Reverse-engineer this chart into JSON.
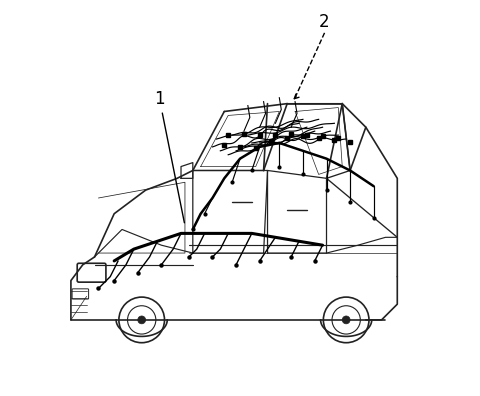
{
  "background_color": "#ffffff",
  "label1": "1",
  "label2": "2",
  "figsize": [
    4.8,
    3.96
  ],
  "dpi": 100,
  "car_color": "#222222",
  "wire_color": "#000000",
  "lw_car": 1.2,
  "lw_wire_main": 2.2,
  "lw_wire_side": 1.8,
  "lw_wire_branch": 1.0
}
